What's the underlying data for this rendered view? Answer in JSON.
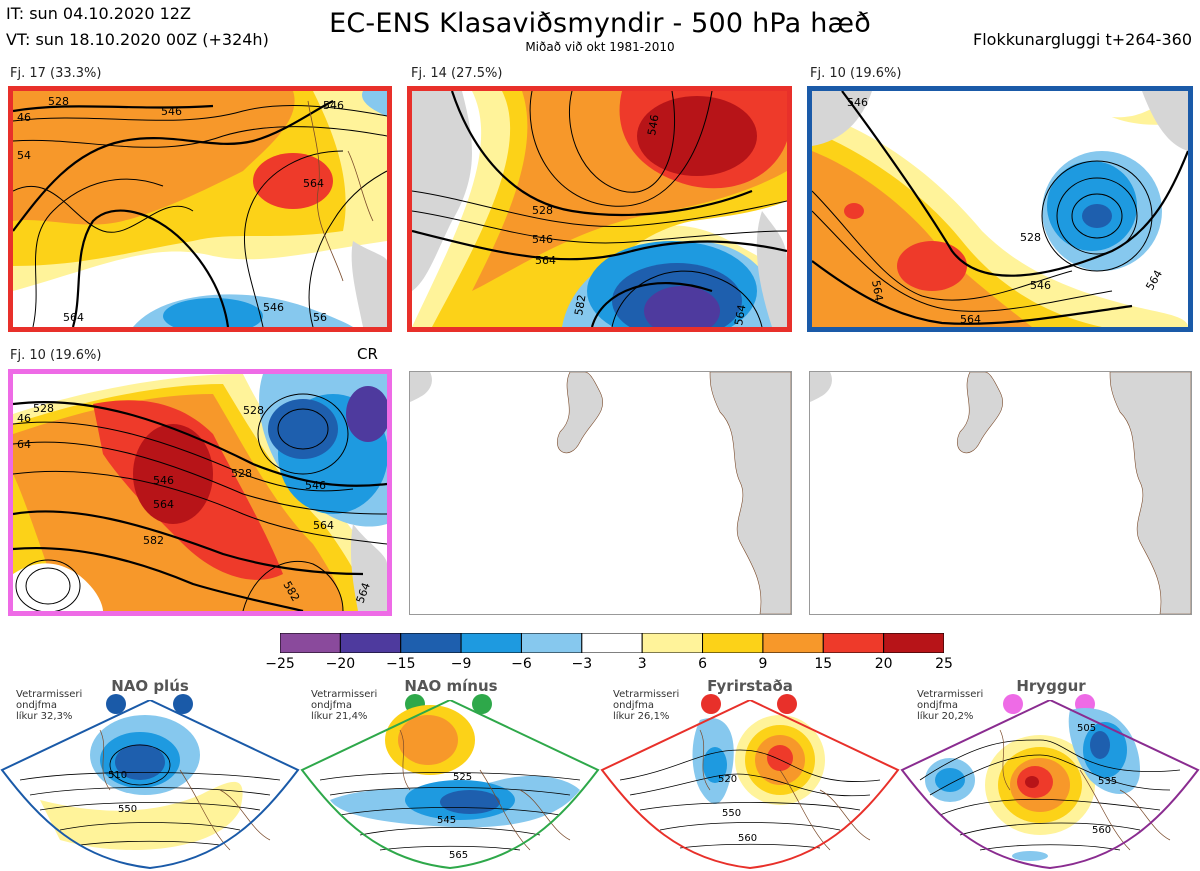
{
  "header": {
    "it": "IT: sun 04.10.2020 12Z",
    "vt": "VT: sun 18.10.2020 00Z  (+324h)",
    "title": "EC-ENS Klasaviðsmyndir - 500 hPa hæð",
    "subtitle": "Miðað við okt 1981-2010",
    "window": "Flokkunargluggi t+264-360"
  },
  "panels": [
    {
      "label": "Fj. 17 (33.3%)",
      "border": "#e8302a",
      "contours": [
        "46",
        "528",
        "546",
        "54",
        "564",
        "546",
        "56",
        "54"
      ]
    },
    {
      "label": "Fj. 14 (27.5%)",
      "border": "#e8302a",
      "contours": [
        "528",
        "546",
        "564",
        "582",
        "546",
        "564"
      ]
    },
    {
      "label": "Fj. 10 (19.6%)",
      "border": "#1a5aa8",
      "contours": [
        "528",
        "546",
        "564",
        "546",
        "564",
        "564"
      ]
    },
    {
      "label": "Fj. 10 (19.6%)",
      "border": "#ee6be6",
      "tag": "CR",
      "contours": [
        "528",
        "46",
        "64",
        "528",
        "546",
        "546",
        "564",
        "564",
        "582",
        "582",
        "564"
      ]
    },
    {
      "label": "",
      "border": "none",
      "contours": []
    },
    {
      "label": "",
      "border": "none",
      "contours": []
    }
  ],
  "colorbar": {
    "colors": [
      "#8a4a9c",
      "#4e3a9e",
      "#1e5fae",
      "#1e9ae0",
      "#86c8ee",
      "#ffffff",
      "#fff39a",
      "#fcd218",
      "#f7982a",
      "#ee3a2a",
      "#b71418"
    ],
    "ticks": [
      "−25",
      "−20",
      "−15",
      "−9",
      "−6",
      "−3",
      "3",
      "6",
      "9",
      "15",
      "20",
      "25"
    ]
  },
  "climatology": [
    {
      "name": "NAO plús",
      "note": [
        "Vetrarmisseri",
        "ondjfma",
        "líkur 32,3%"
      ],
      "color": "#1a5aa8",
      "contours": [
        "510",
        "550"
      ]
    },
    {
      "name": "NAO mínus",
      "note": [
        "Vetrarmisseri",
        "ondjfma",
        "líkur 21,4%"
      ],
      "color": "#2ea84a",
      "contours": [
        "525",
        "545",
        "565"
      ]
    },
    {
      "name": "Fyrirstaða",
      "note": [
        "Vetrarmisseri",
        "ondjfma",
        "líkur 26,1%"
      ],
      "color": "#e8302a",
      "contours": [
        "520",
        "550",
        "560"
      ]
    },
    {
      "name": "Hryggur",
      "note": [
        "Vetrarmisseri",
        "ondjfma",
        "líkur 20,2%"
      ],
      "color": "#8a2c90",
      "dot_color": "#ee6be6",
      "contours": [
        "505",
        "535",
        "560"
      ]
    }
  ]
}
